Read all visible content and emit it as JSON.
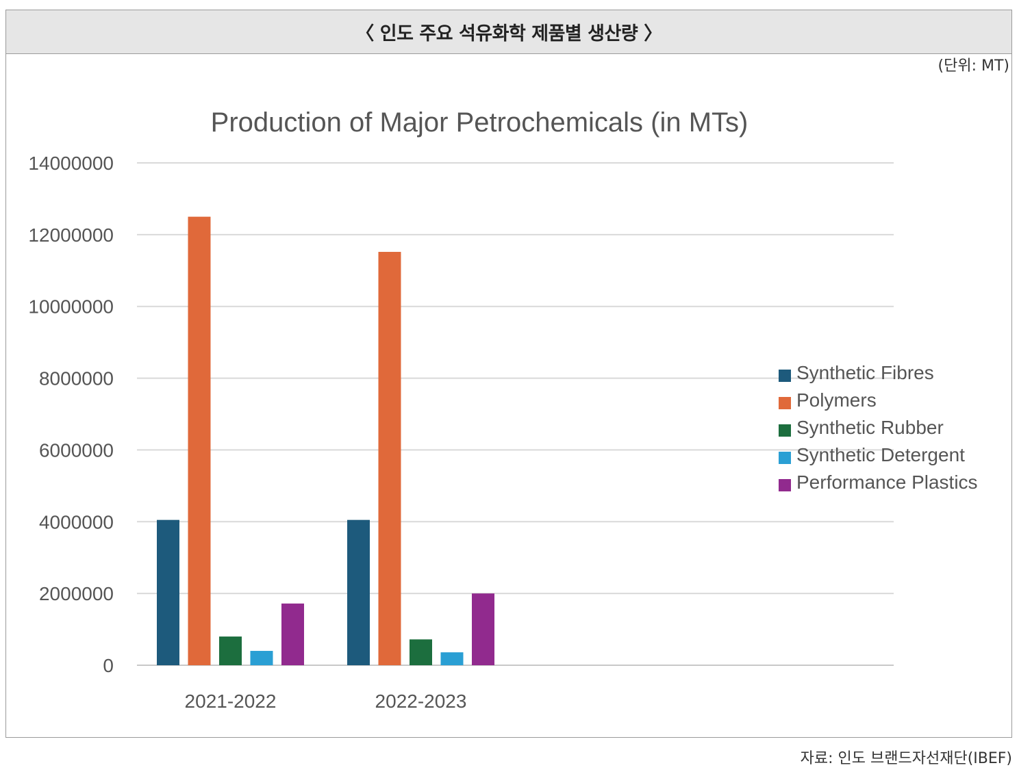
{
  "header": {
    "title": "〈 인도 주요 석유화학 제품별 생산량 〉"
  },
  "unit_label": "(단위: MT)",
  "source_label": "자료: 인도 브랜드자선재단(IBEF)",
  "chart_data": {
    "type": "bar",
    "title": "Production of Major Petrochemicals (in MTs)",
    "categories": [
      "2021-2022",
      "2022-2023"
    ],
    "series": [
      {
        "name": "Synthetic Fibres",
        "color": "#1d5a7c",
        "values": [
          4050000,
          4050000
        ]
      },
      {
        "name": "Polymers",
        "color": "#e0693a",
        "values": [
          12500000,
          11520000
        ]
      },
      {
        "name": "Synthetic Rubber",
        "color": "#1c6e3e",
        "values": [
          800000,
          720000
        ]
      },
      {
        "name": "Synthetic Detergent",
        "color": "#2a9fd4",
        "values": [
          400000,
          360000
        ]
      },
      {
        "name": "Performance Plastics",
        "color": "#912a8e",
        "values": [
          1720000,
          2000000
        ]
      }
    ],
    "ylim": [
      0,
      14000000
    ],
    "yticks": [
      "0",
      "2000000",
      "4000000",
      "6000000",
      "8000000",
      "10000000",
      "12000000",
      "14000000"
    ],
    "grid": true,
    "legend_position": "right"
  }
}
